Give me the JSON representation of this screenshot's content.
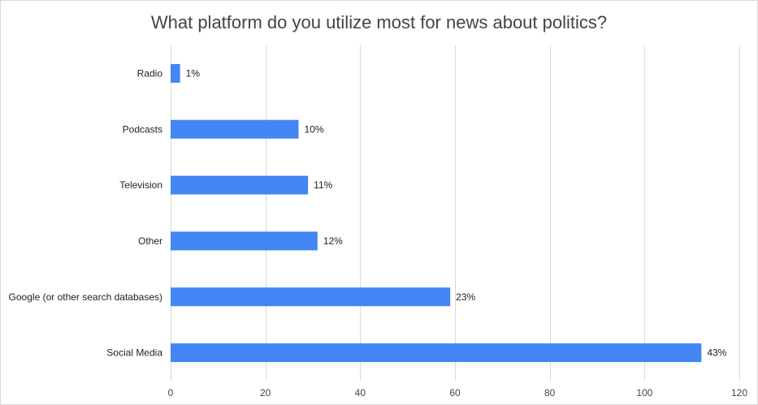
{
  "chart_data": {
    "type": "bar",
    "orientation": "horizontal",
    "title": "What platform do you utilize most for news about politics?",
    "xlabel": "",
    "ylabel": "",
    "categories": [
      "Radio",
      "Podcasts",
      "Television",
      "Other",
      "Google (or other search databases)",
      "Social Media"
    ],
    "values": [
      2,
      27,
      29,
      31,
      59,
      112
    ],
    "data_labels": [
      "1%",
      "10%",
      "11%",
      "12%",
      "23%",
      "43%"
    ],
    "xlim": [
      0,
      120
    ],
    "x_ticks": [
      0,
      20,
      40,
      60,
      80,
      100,
      120
    ],
    "x_tick_labels": [
      "0",
      "20",
      "40",
      "60",
      "80",
      "100",
      "120"
    ],
    "grid": true,
    "legend": "none",
    "bar_color": "#4285f4"
  }
}
